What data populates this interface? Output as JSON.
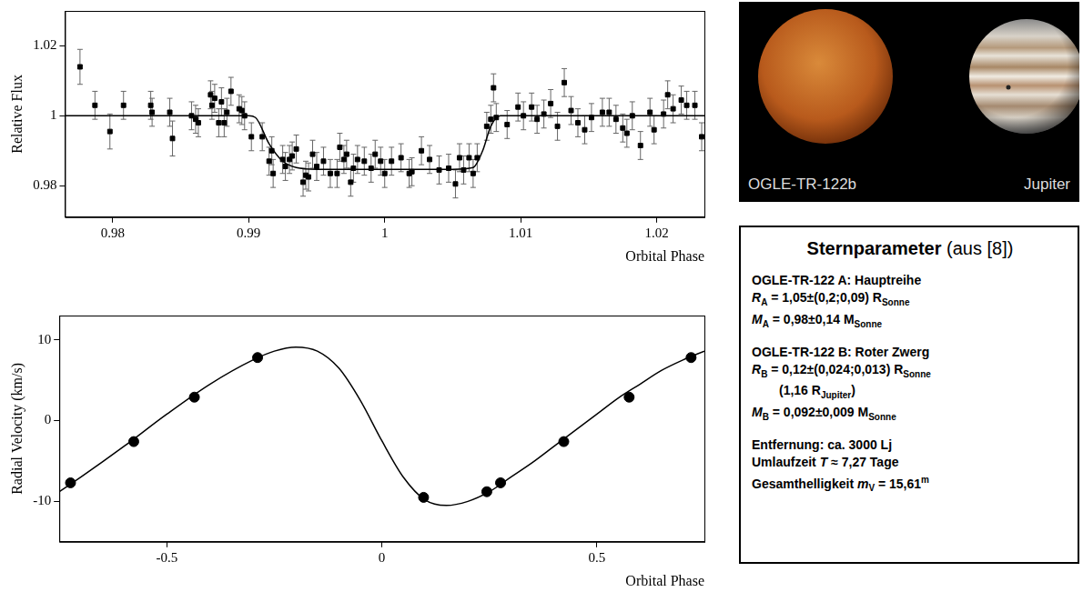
{
  "chart_data": [
    {
      "type": "scatter",
      "x_label": "Orbital Phase",
      "y_label": "Relative Flux",
      "xlim": [
        0.9765,
        1.0235
      ],
      "xticks": [
        0.98,
        0.99,
        1,
        1.01,
        1.02
      ],
      "ylim": [
        0.971,
        1.03
      ],
      "yticks": [
        0.98,
        1,
        1.02
      ],
      "grid": false,
      "series": [
        {
          "type": "scatter",
          "marker": "square",
          "color": "#000000",
          "x": [
            0.9776,
            0.9787,
            0.9798,
            0.9808,
            0.9828,
            0.9829,
            0.9842,
            0.9844,
            0.9858,
            0.9861,
            0.9863,
            0.9872,
            0.9873,
            0.9875,
            0.9878,
            0.988,
            0.9882,
            0.9884,
            0.9887,
            0.9893,
            0.9895,
            0.9897,
            0.9902,
            0.991,
            0.9915,
            0.9917,
            0.9918,
            0.9925,
            0.9927,
            0.993,
            0.9932,
            0.9935,
            0.994,
            0.9942,
            0.9944,
            0.9947,
            0.995,
            0.9955,
            0.996,
            0.9965,
            0.9967,
            0.997,
            0.9972,
            0.9975,
            0.9977,
            0.998,
            0.9985,
            0.999,
            0.9993,
            0.9997,
            1.0,
            1.0005,
            1.0012,
            1.0018,
            1.002,
            1.0027,
            1.0033,
            1.004,
            1.0047,
            1.0052,
            1.0055,
            1.0058,
            1.0062,
            1.0065,
            1.0068,
            1.0075,
            1.0078,
            1.008,
            1.0082,
            1.009,
            1.0098,
            1.0102,
            1.0108,
            1.0112,
            1.0117,
            1.0122,
            1.0127,
            1.0132,
            1.0137,
            1.0142,
            1.0147,
            1.0152,
            1.016,
            1.0165,
            1.017,
            1.0175,
            1.0178,
            1.0182,
            1.0188,
            1.0195,
            1.0198,
            1.0205,
            1.0208,
            1.0212,
            1.0218,
            1.0222,
            1.0228,
            1.0233
          ],
          "values": [
            1.014,
            1.003,
            0.9955,
            1.003,
            1.003,
            1.001,
            1.001,
            0.9935,
            1.0,
            0.999,
            0.998,
            1.006,
            1.003,
            1.005,
            0.998,
            1.004,
            0.998,
            1.001,
            1.007,
            1.002,
            1.0015,
            1.0,
            0.994,
            0.994,
            0.987,
            0.99,
            0.9835,
            0.9875,
            0.9855,
            0.9875,
            0.9885,
            0.9905,
            0.981,
            0.983,
            0.9825,
            0.989,
            0.9855,
            0.987,
            0.9835,
            0.9835,
            0.991,
            0.9875,
            0.989,
            0.981,
            0.985,
            0.9875,
            0.987,
            0.985,
            0.989,
            0.987,
            0.9835,
            0.987,
            0.988,
            0.9835,
            0.984,
            0.99,
            0.9875,
            0.9845,
            0.985,
            0.9805,
            0.988,
            0.9845,
            0.988,
            0.9835,
            0.988,
            0.997,
            0.999,
            1.008,
            0.9995,
            0.9975,
            1.0025,
            1.0,
            1.0025,
            0.999,
            1.0005,
            1.0035,
            0.997,
            1.0095,
            1.0015,
            0.998,
            0.996,
            0.9995,
            1.001,
            1.001,
            0.999,
            0.9965,
            0.995,
            1.0,
            0.9915,
            1.001,
            0.996,
            1.0005,
            1.006,
            1.002,
            1.0045,
            1.003,
            1.003,
            0.994
          ],
          "errors": [
            0.005,
            0.004,
            0.005,
            0.004,
            0.004,
            0.004,
            0.004,
            0.005,
            0.004,
            0.004,
            0.004,
            0.004,
            0.004,
            0.004,
            0.004,
            0.004,
            0.004,
            0.004,
            0.004,
            0.004,
            0.004,
            0.004,
            0.004,
            0.004,
            0.004,
            0.004,
            0.004,
            0.004,
            0.004,
            0.004,
            0.004,
            0.004,
            0.004,
            0.004,
            0.004,
            0.004,
            0.004,
            0.004,
            0.004,
            0.004,
            0.004,
            0.004,
            0.004,
            0.004,
            0.004,
            0.004,
            0.004,
            0.004,
            0.004,
            0.004,
            0.004,
            0.004,
            0.004,
            0.004,
            0.004,
            0.004,
            0.004,
            0.004,
            0.004,
            0.004,
            0.004,
            0.004,
            0.004,
            0.004,
            0.004,
            0.004,
            0.004,
            0.004,
            0.004,
            0.004,
            0.004,
            0.004,
            0.004,
            0.004,
            0.004,
            0.004,
            0.004,
            0.004,
            0.004,
            0.004,
            0.004,
            0.004,
            0.004,
            0.004,
            0.004,
            0.004,
            0.004,
            0.004,
            0.004,
            0.004,
            0.004,
            0.004,
            0.004,
            0.004,
            0.004,
            0.004,
            0.004,
            0.004
          ]
        },
        {
          "type": "line",
          "line_style": "solid",
          "color": "#000000",
          "x": [
            0.9765,
            0.99,
            0.9905,
            0.9915,
            0.9925,
            0.9935,
            0.995,
            1.005,
            1.0065,
            1.0072,
            1.0078,
            1.0085,
            1.0235
          ],
          "values": [
            1,
            1,
            0.9995,
            0.992,
            0.987,
            0.9852,
            0.9847,
            0.9847,
            0.9852,
            0.99,
            0.997,
            1,
            1
          ]
        }
      ]
    },
    {
      "type": "scatter",
      "x_label": "Orbital Phase",
      "y_label": "Radial Velocity (km/s)",
      "xlim": [
        -0.75,
        0.75
      ],
      "xticks": [
        -0.5,
        0,
        0.5
      ],
      "ylim": [
        -15,
        13
      ],
      "yticks": [
        -10,
        0,
        10
      ],
      "grid": false,
      "series": [
        {
          "type": "scatter",
          "marker": "circle",
          "color": "#000000",
          "x": [
            -0.724,
            -0.577,
            -0.436,
            -0.289,
            0.097,
            0.244,
            0.276,
            0.423,
            0.575,
            0.719
          ],
          "values": [
            -7.7,
            -2.6,
            2.9,
            7.8,
            -9.5,
            -8.8,
            -7.7,
            -2.6,
            2.9,
            7.8
          ]
        },
        {
          "type": "line",
          "line_style": "solid",
          "color": "#000000",
          "x": [
            -0.75,
            -0.7,
            -0.6,
            -0.5,
            -0.4,
            -0.3,
            -0.25,
            -0.2,
            -0.15,
            -0.1,
            -0.05,
            0,
            0.05,
            0.1,
            0.15,
            0.2,
            0.25,
            0.3,
            0.35,
            0.4,
            0.45,
            0.5,
            0.55,
            0.6,
            0.65,
            0.7,
            0.75
          ],
          "values": [
            -8.8,
            -7.0,
            -3.2,
            0.8,
            4.5,
            7.5,
            8.6,
            9.1,
            8.6,
            6.5,
            2.5,
            -2.5,
            -7.0,
            -9.8,
            -10.5,
            -10.0,
            -8.8,
            -7.0,
            -5.2,
            -3.2,
            -1.2,
            0.8,
            2.8,
            4.5,
            6.2,
            7.5,
            8.6
          ]
        }
      ]
    }
  ],
  "image": {
    "labels": [
      "OGLE-TR-122b",
      "Jupiter"
    ]
  },
  "info_box": {
    "title": [
      {
        "text": "Sternparameter",
        "style": "b"
      },
      {
        "text": " (aus [8])"
      }
    ],
    "sections": [
      [
        [
          {
            "text": "OGLE-TR-122 A: Hauptreihe"
          }
        ],
        [
          {
            "text": "R",
            "style": "i"
          },
          {
            "text": "A",
            "style": "sub"
          },
          {
            "text": " = 1,05±(0,2;0,09) R"
          },
          {
            "text": "Sonne",
            "style": "sub"
          }
        ],
        [
          {
            "text": "M",
            "style": "i"
          },
          {
            "text": "A",
            "style": "sub"
          },
          {
            "text": " = 0,98±0,14 M"
          },
          {
            "text": "Sonne",
            "style": "sub"
          }
        ]
      ],
      [
        [
          {
            "text": "OGLE-TR-122 B: Roter Zwerg"
          }
        ],
        [
          {
            "text": "R",
            "style": "i"
          },
          {
            "text": "B",
            "style": "sub"
          },
          {
            "text": " = 0,12±(0,024;0,013) R"
          },
          {
            "text": "Sonne",
            "style": "sub"
          }
        ],
        [
          {
            "text": "(1,16 R"
          },
          {
            "text": "Jupiter",
            "style": "sub"
          },
          {
            "text": ")"
          }
        ],
        [
          {
            "text": "M",
            "style": "i"
          },
          {
            "text": "B",
            "style": "sub"
          },
          {
            "text": " = 0,092±0,009 M"
          },
          {
            "text": "Sonne",
            "style": "sub"
          }
        ]
      ],
      [
        [
          {
            "text": "Entfernung: ca. 3000 Lj"
          }
        ],
        [
          {
            "text": "Umlaufzeit "
          },
          {
            "text": "T",
            "style": "i"
          },
          {
            "text": " ≈ 7,27 Tage"
          }
        ],
        [
          {
            "text": "Gesamthelligkeit "
          },
          {
            "text": "m",
            "style": "i"
          },
          {
            "text": "V",
            "style": "sub"
          },
          {
            "text": " = 15,61"
          },
          {
            "text": "m",
            "style": "sup"
          }
        ]
      ]
    ]
  }
}
